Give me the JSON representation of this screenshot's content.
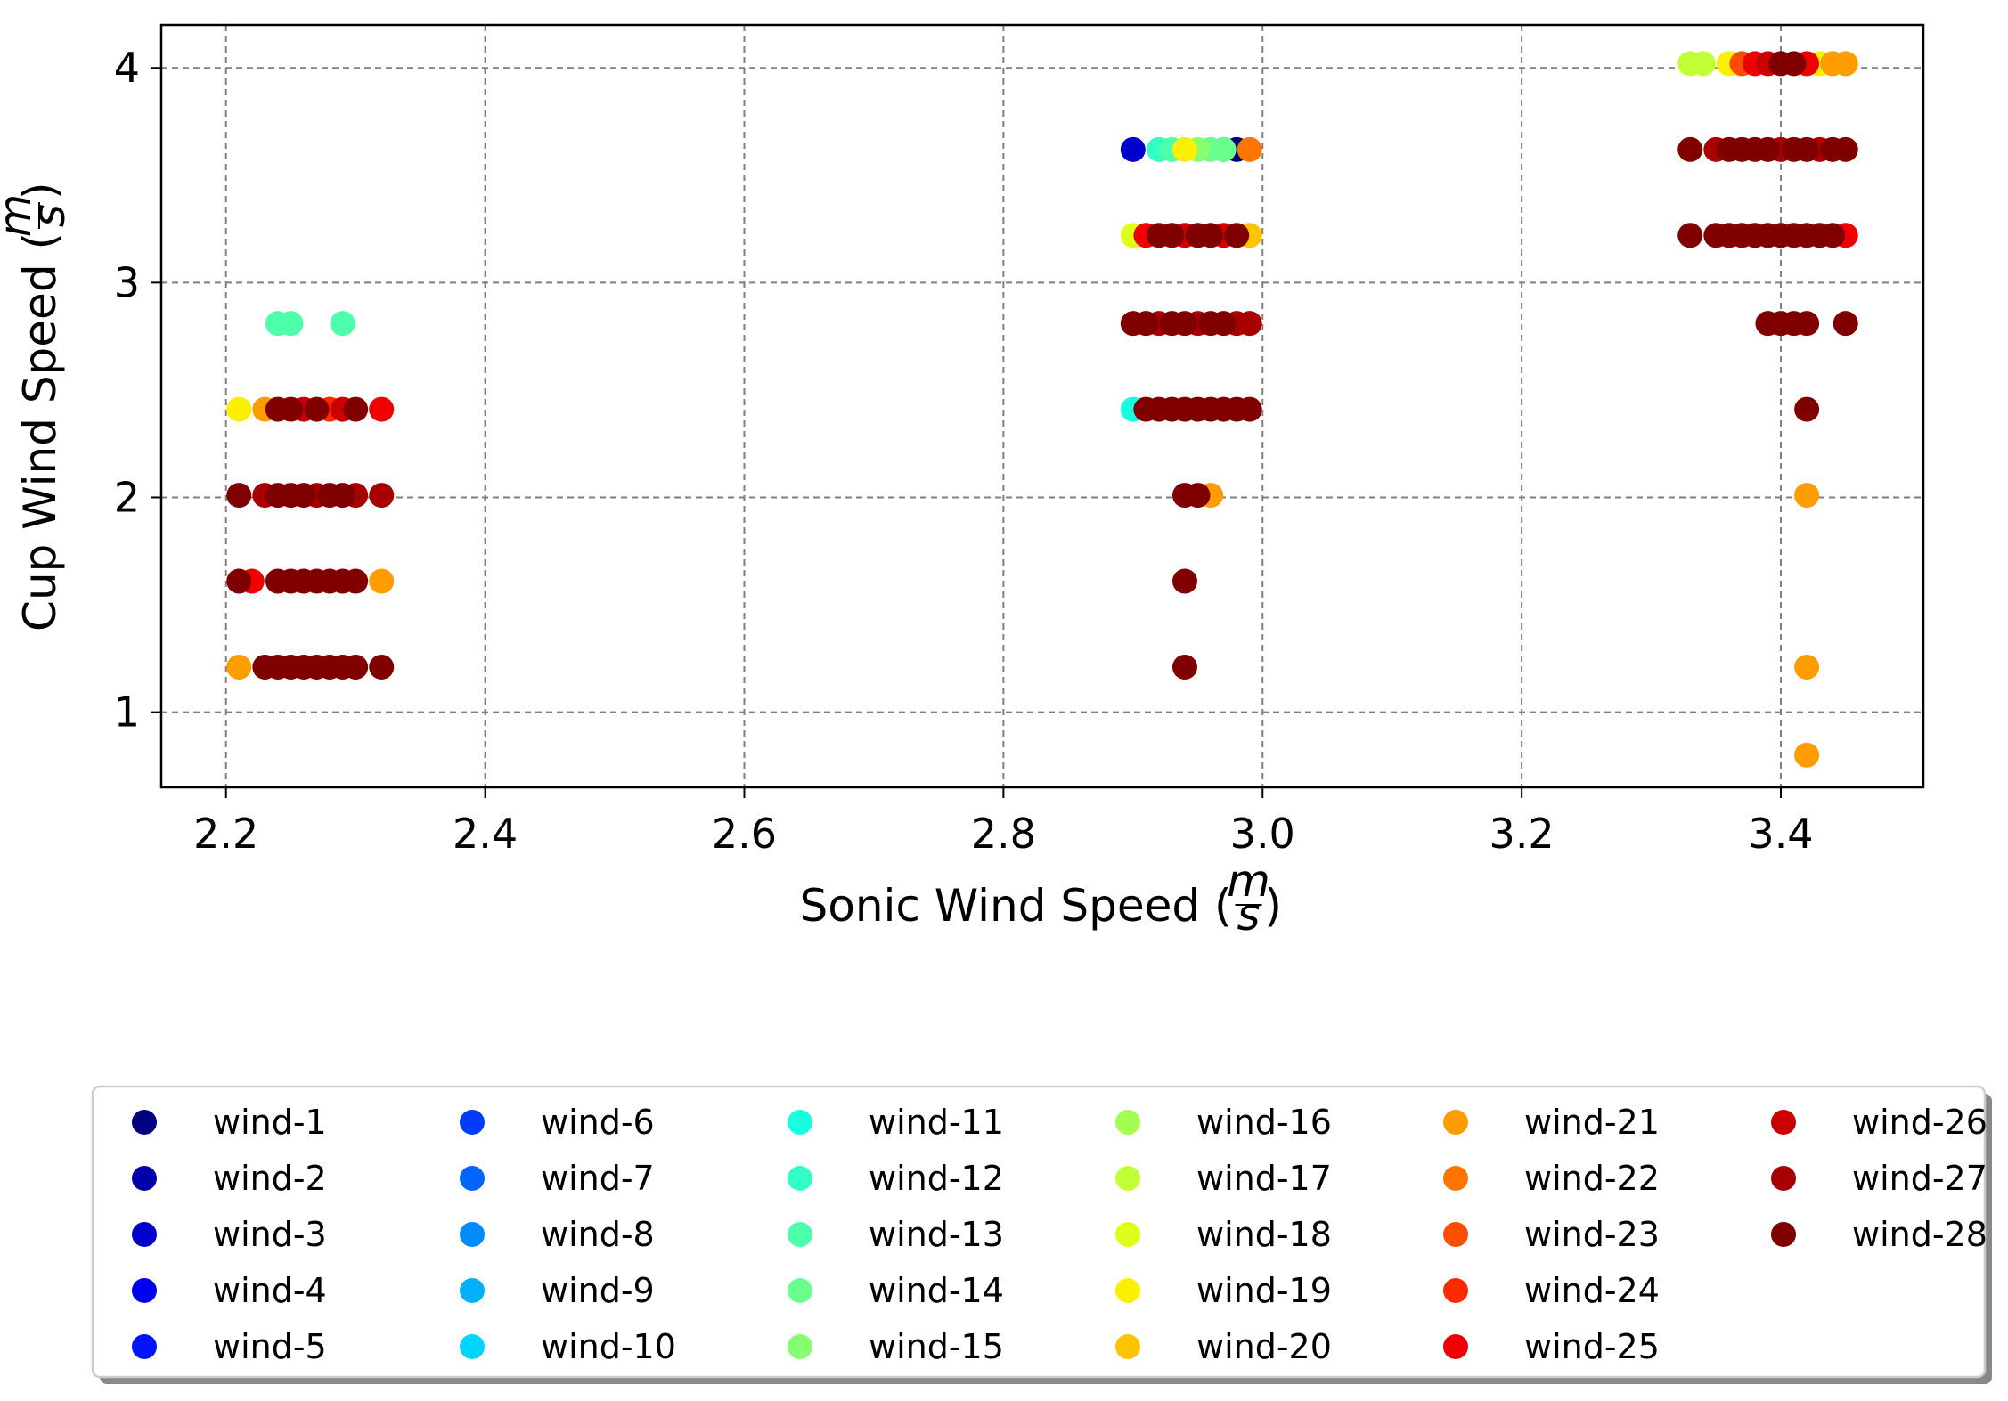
{
  "chart_data": {
    "type": "scatter",
    "title": "",
    "xlabel_prefix": "Sonic Wind Speed (",
    "ylabel_prefix": "Cup Wind Speed (",
    "unit_num": "m",
    "unit_den": "s",
    "label_suffix": ")",
    "xlim": [
      2.15,
      3.51
    ],
    "ylim": [
      0.65,
      4.2
    ],
    "xticks": [
      2.2,
      2.4,
      2.6,
      2.8,
      3.0,
      3.2,
      3.4
    ],
    "xtick_labels": [
      "2.2",
      "2.4",
      "2.6",
      "2.8",
      "3.0",
      "3.2",
      "3.4"
    ],
    "yticks": [
      1,
      2,
      3,
      4
    ],
    "ytick_labels": [
      "1",
      "2",
      "3",
      "4"
    ],
    "grid": true,
    "legend_position": "below",
    "legend_columns": 6,
    "series": [
      {
        "name": "wind-1",
        "color": "#000080",
        "points": [
          [
            2.98,
            3.62
          ]
        ]
      },
      {
        "name": "wind-2",
        "color": "#0000a8",
        "points": [
          [
            2.97,
            3.62
          ]
        ]
      },
      {
        "name": "wind-3",
        "color": "#0000cd",
        "points": [
          [
            2.9,
            3.62
          ]
        ]
      },
      {
        "name": "wind-4",
        "color": "#0000f1",
        "points": []
      },
      {
        "name": "wind-5",
        "color": "#0014ff",
        "points": []
      },
      {
        "name": "wind-6",
        "color": "#003cff",
        "points": []
      },
      {
        "name": "wind-7",
        "color": "#0064ff",
        "points": []
      },
      {
        "name": "wind-8",
        "color": "#008cff",
        "points": []
      },
      {
        "name": "wind-9",
        "color": "#00b0ff",
        "points": []
      },
      {
        "name": "wind-10",
        "color": "#00d4ff",
        "points": []
      },
      {
        "name": "wind-11",
        "color": "#16ffe1",
        "points": [
          [
            2.9,
            2.41
          ]
        ]
      },
      {
        "name": "wind-12",
        "color": "#32ffc4",
        "points": [
          [
            2.92,
            3.62
          ]
        ]
      },
      {
        "name": "wind-13",
        "color": "#4dffaa",
        "points": [
          [
            2.24,
            2.81
          ],
          [
            2.25,
            2.81
          ],
          [
            2.29,
            2.81
          ],
          [
            2.93,
            3.62
          ]
        ]
      },
      {
        "name": "wind-14",
        "color": "#6aff8d",
        "points": [
          [
            2.96,
            3.62
          ],
          [
            2.97,
            3.62
          ]
        ]
      },
      {
        "name": "wind-15",
        "color": "#86ff70",
        "points": [
          [
            2.95,
            3.62
          ]
        ]
      },
      {
        "name": "wind-16",
        "color": "#a4ff53",
        "points": []
      },
      {
        "name": "wind-17",
        "color": "#c1ff36",
        "points": [
          [
            3.33,
            4.02
          ],
          [
            3.34,
            4.02
          ]
        ]
      },
      {
        "name": "wind-18",
        "color": "#deff19",
        "points": [
          [
            2.9,
            3.22
          ]
        ]
      },
      {
        "name": "wind-19",
        "color": "#fbf000",
        "points": [
          [
            2.21,
            2.41
          ],
          [
            2.94,
            3.62
          ],
          [
            3.36,
            4.02
          ],
          [
            3.43,
            4.02
          ]
        ]
      },
      {
        "name": "wind-20",
        "color": "#ffc400",
        "points": [
          [
            2.24,
            2.41
          ],
          [
            2.99,
            3.22
          ]
        ]
      },
      {
        "name": "wind-21",
        "color": "#ff9d00",
        "points": [
          [
            2.21,
            1.21
          ],
          [
            2.23,
            2.41
          ],
          [
            2.32,
            1.61
          ],
          [
            2.96,
            2.01
          ],
          [
            3.42,
            0.8
          ],
          [
            3.42,
            1.21
          ],
          [
            3.42,
            2.01
          ],
          [
            3.44,
            4.02
          ],
          [
            3.45,
            4.02
          ]
        ]
      },
      {
        "name": "wind-22",
        "color": "#ff7500",
        "points": [
          [
            2.99,
            3.62
          ]
        ]
      },
      {
        "name": "wind-23",
        "color": "#ff4d00",
        "points": [
          [
            3.37,
            4.02
          ]
        ]
      },
      {
        "name": "wind-24",
        "color": "#ff2900",
        "points": [
          [
            2.28,
            2.41
          ]
        ]
      },
      {
        "name": "wind-25",
        "color": "#f00000",
        "points": [
          [
            2.32,
            2.41
          ],
          [
            2.22,
            1.61
          ],
          [
            2.91,
            3.22
          ],
          [
            3.38,
            4.02
          ],
          [
            3.42,
            4.02
          ],
          [
            3.45,
            3.22
          ]
        ]
      },
      {
        "name": "wind-26",
        "color": "#cd0000",
        "points": [
          [
            2.26,
            2.41
          ],
          [
            2.29,
            2.41
          ],
          [
            2.94,
            3.22
          ],
          [
            2.97,
            3.22
          ],
          [
            3.39,
            4.02
          ]
        ]
      },
      {
        "name": "wind-27",
        "color": "#a80000",
        "points": [
          [
            2.23,
            2.01
          ],
          [
            2.27,
            2.01
          ],
          [
            2.3,
            2.01
          ],
          [
            2.32,
            2.01
          ],
          [
            2.92,
            2.81
          ],
          [
            2.95,
            2.81
          ],
          [
            2.98,
            2.81
          ],
          [
            2.99,
            2.81
          ],
          [
            3.35,
            3.62
          ],
          [
            3.4,
            3.62
          ],
          [
            3.43,
            3.62
          ]
        ]
      },
      {
        "name": "wind-28",
        "color": "#800000",
        "points": [
          [
            2.21,
            2.01
          ],
          [
            2.21,
            1.61
          ],
          [
            2.23,
            1.21
          ],
          [
            2.24,
            1.21
          ],
          [
            2.25,
            1.21
          ],
          [
            2.26,
            1.21
          ],
          [
            2.27,
            1.21
          ],
          [
            2.28,
            1.21
          ],
          [
            2.29,
            1.21
          ],
          [
            2.3,
            1.21
          ],
          [
            2.32,
            1.21
          ],
          [
            2.24,
            1.61
          ],
          [
            2.25,
            1.61
          ],
          [
            2.26,
            1.61
          ],
          [
            2.27,
            1.61
          ],
          [
            2.28,
            1.61
          ],
          [
            2.29,
            1.61
          ],
          [
            2.3,
            1.61
          ],
          [
            2.24,
            2.01
          ],
          [
            2.25,
            2.01
          ],
          [
            2.26,
            2.01
          ],
          [
            2.28,
            2.01
          ],
          [
            2.29,
            2.01
          ],
          [
            2.24,
            2.41
          ],
          [
            2.25,
            2.41
          ],
          [
            2.27,
            2.41
          ],
          [
            2.3,
            2.41
          ],
          [
            2.94,
            1.21
          ],
          [
            2.94,
            1.61
          ],
          [
            2.94,
            2.01
          ],
          [
            2.95,
            2.01
          ],
          [
            2.91,
            2.41
          ],
          [
            2.92,
            2.41
          ],
          [
            2.93,
            2.41
          ],
          [
            2.94,
            2.41
          ],
          [
            2.95,
            2.41
          ],
          [
            2.96,
            2.41
          ],
          [
            2.97,
            2.41
          ],
          [
            2.98,
            2.41
          ],
          [
            2.99,
            2.41
          ],
          [
            2.9,
            2.81
          ],
          [
            2.91,
            2.81
          ],
          [
            2.93,
            2.81
          ],
          [
            2.94,
            2.81
          ],
          [
            2.96,
            2.81
          ],
          [
            2.97,
            2.81
          ],
          [
            2.92,
            3.22
          ],
          [
            2.93,
            3.22
          ],
          [
            2.95,
            3.22
          ],
          [
            2.96,
            3.22
          ],
          [
            2.98,
            3.22
          ],
          [
            3.33,
            3.22
          ],
          [
            3.35,
            3.22
          ],
          [
            3.36,
            3.22
          ],
          [
            3.37,
            3.22
          ],
          [
            3.38,
            3.22
          ],
          [
            3.39,
            3.22
          ],
          [
            3.4,
            3.22
          ],
          [
            3.41,
            3.22
          ],
          [
            3.42,
            3.22
          ],
          [
            3.43,
            3.22
          ],
          [
            3.44,
            3.22
          ],
          [
            3.33,
            3.62
          ],
          [
            3.36,
            3.62
          ],
          [
            3.37,
            3.62
          ],
          [
            3.38,
            3.62
          ],
          [
            3.39,
            3.62
          ],
          [
            3.41,
            3.62
          ],
          [
            3.42,
            3.62
          ],
          [
            3.44,
            3.62
          ],
          [
            3.45,
            3.62
          ],
          [
            3.39,
            2.81
          ],
          [
            3.4,
            2.81
          ],
          [
            3.41,
            2.81
          ],
          [
            3.42,
            2.81
          ],
          [
            3.45,
            2.81
          ],
          [
            3.42,
            2.41
          ],
          [
            3.4,
            4.02
          ],
          [
            3.41,
            4.02
          ]
        ]
      }
    ]
  }
}
